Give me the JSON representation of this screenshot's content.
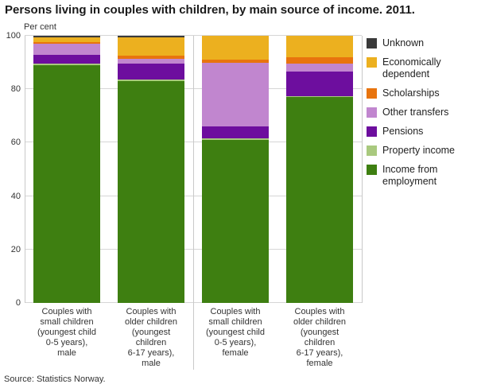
{
  "title": "Persons living in couples with children, by main source of income. 2011.",
  "y_axis_label": "Per cent",
  "source": "Source: Statistics Norway.",
  "chart_data": {
    "type": "bar",
    "stacked": true,
    "title": "Persons living in couples with children, by main source of income. 2011.",
    "xlabel": "",
    "ylabel": "Per cent",
    "ylim": [
      0,
      100
    ],
    "yticks": [
      0,
      20,
      40,
      60,
      80,
      100
    ],
    "grid": true,
    "legend_position": "right",
    "categories": [
      "Couples with\nsmall children\n(youngest child\n0-5 years),\nmale",
      "Couples with\nolder children\n(youngest\nchildren\n6-17 years),\nmale",
      "Couples with\nsmall children\n(youngest child\n0-5 years),\nfemale",
      "Couples with\nolder children\n(youngest\nchildren\n6-17 years),\nfemale"
    ],
    "series": [
      {
        "name": "Income from employment",
        "color": "#3e7f11",
        "values": [
          89,
          83,
          61,
          77
        ]
      },
      {
        "name": "Property income",
        "color": "#a9c97e",
        "values": [
          0.5,
          0.5,
          0.5,
          0.5
        ]
      },
      {
        "name": "Pensions",
        "color": "#6d0e9e",
        "values": [
          3.5,
          6,
          4.5,
          9
        ]
      },
      {
        "name": "Other transfers",
        "color": "#c186cf",
        "values": [
          4,
          2,
          24,
          3
        ]
      },
      {
        "name": "Scholarships",
        "color": "#e8740e",
        "values": [
          0.5,
          1,
          1,
          2.5
        ]
      },
      {
        "name": "Economically dependent",
        "color": "#ecb01f",
        "values": [
          2,
          7,
          9,
          8
        ]
      },
      {
        "name": "Unknown",
        "color": "#3a3a3a",
        "values": [
          0.5,
          0.5,
          0,
          0
        ]
      }
    ],
    "legend_order_top_to_bottom": [
      "Unknown",
      "Economically dependent",
      "Scholarships",
      "Other transfers",
      "Pensions",
      "Property income",
      "Income from employment"
    ]
  }
}
